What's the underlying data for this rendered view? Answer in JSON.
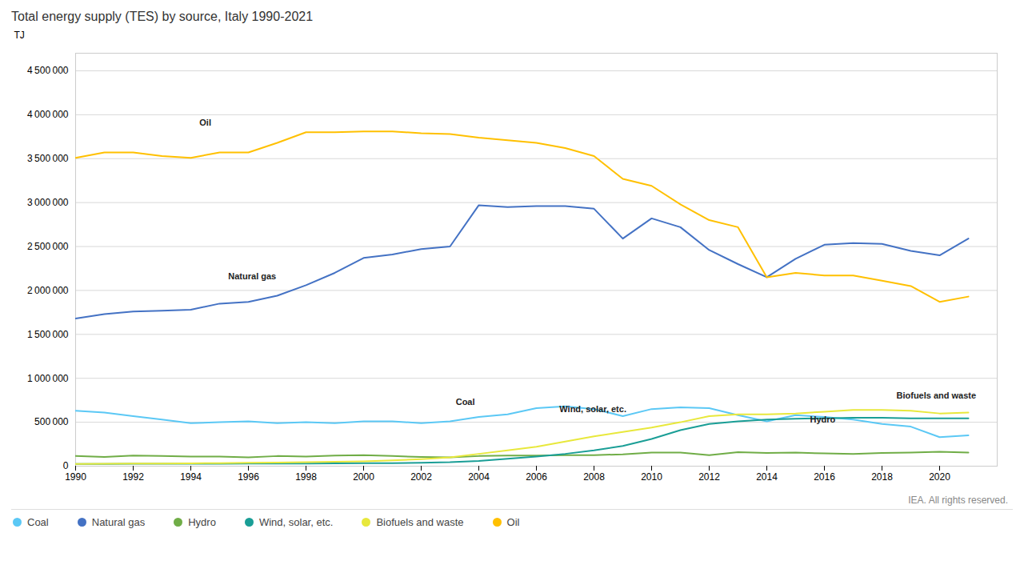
{
  "chart_data": {
    "type": "line",
    "title": "Total energy supply (TES) by source, Italy 1990-2021",
    "ylabel": "TJ",
    "caption": "IEA. All rights reserved.",
    "x": [
      1990,
      1991,
      1992,
      1993,
      1994,
      1995,
      1996,
      1997,
      1998,
      1999,
      2000,
      2001,
      2002,
      2003,
      2004,
      2005,
      2006,
      2007,
      2008,
      2009,
      2010,
      2011,
      2012,
      2013,
      2014,
      2015,
      2016,
      2017,
      2018,
      2019,
      2020,
      2021
    ],
    "series": [
      {
        "name": "Coal",
        "color": "#5bc8f5",
        "values": [
          630000,
          610000,
          570000,
          530000,
          490000,
          500000,
          510000,
          490000,
          500000,
          490000,
          510000,
          510000,
          490000,
          510000,
          560000,
          590000,
          660000,
          680000,
          650000,
          570000,
          650000,
          670000,
          660000,
          580000,
          510000,
          580000,
          560000,
          530000,
          480000,
          450000,
          330000,
          350000
        ]
      },
      {
        "name": "Natural gas",
        "color": "#4472c4",
        "values": [
          1680000,
          1730000,
          1760000,
          1770000,
          1780000,
          1850000,
          1870000,
          1940000,
          2060000,
          2200000,
          2370000,
          2410000,
          2470000,
          2500000,
          2970000,
          2950000,
          2960000,
          2960000,
          2930000,
          2590000,
          2820000,
          2720000,
          2460000,
          2300000,
          2150000,
          2360000,
          2520000,
          2540000,
          2530000,
          2450000,
          2400000,
          2590000
        ]
      },
      {
        "name": "Hydro",
        "color": "#70ad47",
        "values": [
          115000,
          105000,
          120000,
          115000,
          110000,
          110000,
          100000,
          115000,
          110000,
          120000,
          125000,
          115000,
          105000,
          100000,
          115000,
          120000,
          120000,
          125000,
          125000,
          135000,
          155000,
          155000,
          125000,
          160000,
          150000,
          155000,
          145000,
          140000,
          150000,
          155000,
          165000,
          155000
        ]
      },
      {
        "name": "Wind, solar, etc.",
        "color": "#1a9e96",
        "values": [
          25000,
          25000,
          28000,
          28000,
          28000,
          28000,
          30000,
          30000,
          30000,
          32000,
          35000,
          35000,
          38000,
          45000,
          60000,
          85000,
          110000,
          140000,
          180000,
          230000,
          310000,
          410000,
          480000,
          510000,
          530000,
          540000,
          545000,
          550000,
          550000,
          545000,
          545000,
          545000
        ]
      },
      {
        "name": "Biofuels and waste",
        "color": "#e8e83c",
        "values": [
          25000,
          28000,
          30000,
          30000,
          32000,
          35000,
          38000,
          42000,
          45000,
          50000,
          55000,
          65000,
          80000,
          100000,
          140000,
          180000,
          220000,
          280000,
          340000,
          390000,
          440000,
          500000,
          570000,
          590000,
          590000,
          600000,
          620000,
          640000,
          640000,
          630000,
          600000,
          610000
        ]
      },
      {
        "name": "Oil",
        "color": "#ffc000",
        "values": [
          3510000,
          3570000,
          3570000,
          3530000,
          3510000,
          3570000,
          3570000,
          3680000,
          3800000,
          3800000,
          3810000,
          3810000,
          3790000,
          3780000,
          3740000,
          3710000,
          3680000,
          3620000,
          3530000,
          3270000,
          3190000,
          2980000,
          2800000,
          2720000,
          2150000,
          2200000,
          2170000,
          2170000,
          2110000,
          2050000,
          1870000,
          1930000
        ]
      }
    ],
    "annotations": [
      {
        "x": 1994.3,
        "y": 3880000,
        "label": "Oil"
      },
      {
        "x": 1995.3,
        "y": 2130000,
        "label": "Natural gas"
      },
      {
        "x": 2003.2,
        "y": 700000,
        "label": "Coal"
      },
      {
        "x": 2006.8,
        "y": 617000,
        "label": "Wind, solar, etc."
      },
      {
        "x": 2018.5,
        "y": 770000,
        "label": "Biofuels and waste"
      },
      {
        "x": 2015.5,
        "y": 500000,
        "label": "Hydro"
      }
    ],
    "xlim": [
      1990,
      2022
    ],
    "xticks": [
      1990,
      1992,
      1994,
      1996,
      1998,
      2000,
      2002,
      2004,
      2006,
      2008,
      2010,
      2012,
      2014,
      2016,
      2018,
      2020
    ],
    "ylim": [
      0,
      4700000
    ],
    "yticks": [
      0,
      {
        "value": 500000,
        "label": "500 000"
      },
      {
        "value": 1000000,
        "label": "1 000 000"
      },
      {
        "value": 1500000,
        "label": "1 500 000"
      },
      {
        "value": 2000000,
        "label": "2 000 000"
      },
      {
        "value": 2500000,
        "label": "2 500 000"
      },
      {
        "value": 3000000,
        "label": "3 000 000"
      },
      {
        "value": 3500000,
        "label": "3 500 000"
      },
      {
        "value": 4000000,
        "label": "4 000 000"
      },
      {
        "value": 4500000,
        "label": "4 500 000"
      }
    ],
    "grid": "y",
    "legend": "bottom"
  }
}
